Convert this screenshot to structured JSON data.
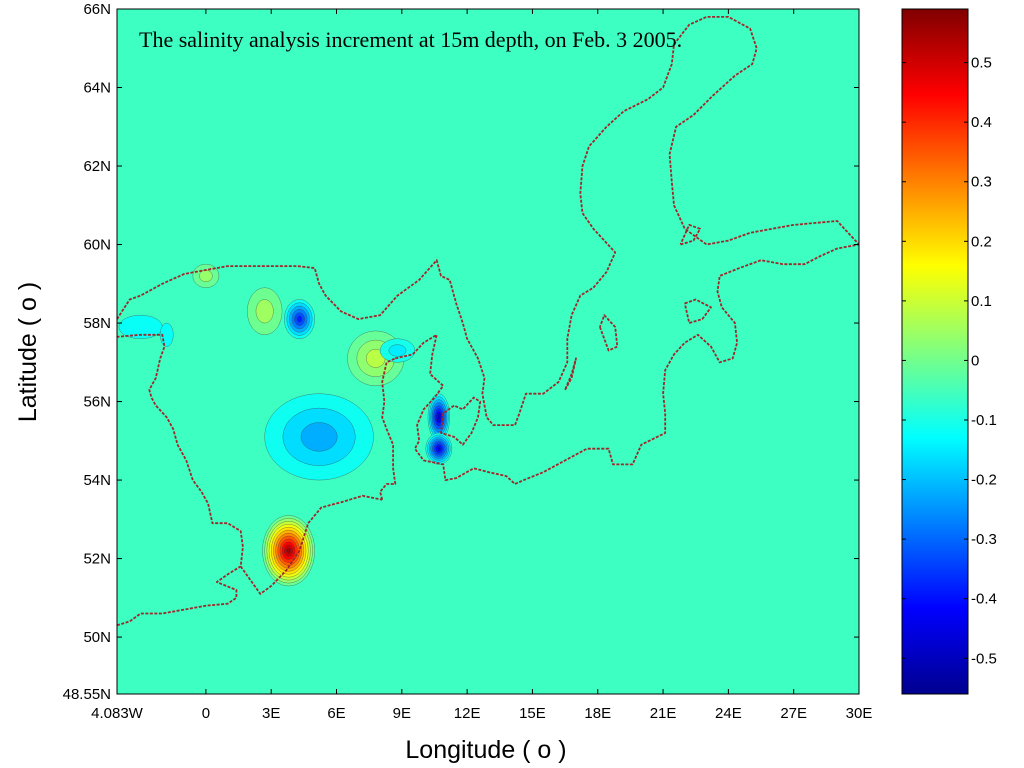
{
  "chart_data": {
    "type": "heatmap",
    "title": "The salinity analysis increment at 15m depth, on Feb. 3 2005.",
    "xlabel": "Longitude ( o )",
    "ylabel": "Latitude ( o )",
    "xlim": [
      -4.083,
      30
    ],
    "ylim": [
      48.55,
      66
    ],
    "x_ticks": [
      {
        "value": -4.083,
        "label": "4.083W"
      },
      {
        "value": 0,
        "label": "0"
      },
      {
        "value": 3,
        "label": "3E"
      },
      {
        "value": 6,
        "label": "6E"
      },
      {
        "value": 9,
        "label": "9E"
      },
      {
        "value": 12,
        "label": "12E"
      },
      {
        "value": 15,
        "label": "15E"
      },
      {
        "value": 18,
        "label": "18E"
      },
      {
        "value": 21,
        "label": "21E"
      },
      {
        "value": 24,
        "label": "24E"
      },
      {
        "value": 27,
        "label": "27E"
      },
      {
        "value": 30,
        "label": "30E"
      }
    ],
    "y_ticks": [
      {
        "value": 48.55,
        "label": "48.55N"
      },
      {
        "value": 50,
        "label": "50N"
      },
      {
        "value": 52,
        "label": "52N"
      },
      {
        "value": 54,
        "label": "54N"
      },
      {
        "value": 56,
        "label": "56N"
      },
      {
        "value": 58,
        "label": "58N"
      },
      {
        "value": 60,
        "label": "60N"
      },
      {
        "value": 62,
        "label": "62N"
      },
      {
        "value": 64,
        "label": "64N"
      },
      {
        "value": 66,
        "label": "66N"
      }
    ],
    "colorbar": {
      "range": [
        -0.56,
        0.59
      ],
      "colormap": "jet",
      "ticks": [
        {
          "value": 0.5,
          "label": "0.5"
        },
        {
          "value": 0.4,
          "label": "0.4"
        },
        {
          "value": 0.3,
          "label": "0.3"
        },
        {
          "value": 0.2,
          "label": "0.2"
        },
        {
          "value": 0.1,
          "label": "0.1"
        },
        {
          "value": 0,
          "label": "0"
        },
        {
          "value": -0.1,
          "label": "-0.1"
        },
        {
          "value": -0.2,
          "label": "-0.2"
        },
        {
          "value": -0.3,
          "label": "-0.3"
        },
        {
          "value": -0.4,
          "label": "-0.4"
        },
        {
          "value": -0.5,
          "label": "-0.5"
        }
      ]
    },
    "background_value": -0.06,
    "contour_interval": 0.05,
    "features": [
      {
        "lon": 3.8,
        "lat": 52.2,
        "value": 0.55,
        "rx": 1.2,
        "ry": 0.9
      },
      {
        "lon": 5.2,
        "lat": 55.1,
        "value": -0.22,
        "rx": 2.5,
        "ry": 1.1
      },
      {
        "lon": 7.8,
        "lat": 57.1,
        "value": 0.08,
        "rx": 1.3,
        "ry": 0.7
      },
      {
        "lon": 2.7,
        "lat": 58.3,
        "value": 0.05,
        "rx": 0.8,
        "ry": 0.6
      },
      {
        "lon": 4.3,
        "lat": 58.1,
        "value": -0.38,
        "rx": 0.7,
        "ry": 0.5
      },
      {
        "lon": 10.7,
        "lat": 55.6,
        "value": -0.48,
        "rx": 0.5,
        "ry": 0.6
      },
      {
        "lon": 10.7,
        "lat": 54.8,
        "value": -0.45,
        "rx": 0.6,
        "ry": 0.4
      },
      {
        "lon": 8.8,
        "lat": 57.3,
        "value": -0.15,
        "rx": 0.8,
        "ry": 0.3
      },
      {
        "lon": -3.0,
        "lat": 57.9,
        "value": -0.12,
        "rx": 1.0,
        "ry": 0.3
      },
      {
        "lon": -1.8,
        "lat": 57.7,
        "value": -0.12,
        "rx": 0.3,
        "ry": 0.3
      },
      {
        "lon": 0.0,
        "lat": 59.2,
        "value": 0.04,
        "rx": 0.6,
        "ry": 0.3
      }
    ],
    "coastline": [
      [
        [
          -4.083,
          50.3
        ],
        [
          -3.5,
          50.4
        ],
        [
          -3,
          50.6
        ],
        [
          -2,
          50.6
        ],
        [
          -1,
          50.7
        ],
        [
          0,
          50.8
        ],
        [
          1,
          50.85
        ],
        [
          1.4,
          51.0
        ],
        [
          1.4,
          51.2
        ],
        [
          0.5,
          51.4
        ],
        [
          1.0,
          51.6
        ],
        [
          1.6,
          51.8
        ],
        [
          1.7,
          52.3
        ],
        [
          1.6,
          52.7
        ],
        [
          1.0,
          52.9
        ],
        [
          0.3,
          52.9
        ],
        [
          0.1,
          53.4
        ],
        [
          -0.2,
          53.7
        ],
        [
          -0.6,
          54.0
        ],
        [
          -0.9,
          54.5
        ],
        [
          -1.3,
          54.9
        ],
        [
          -1.5,
          55.3
        ],
        [
          -1.8,
          55.6
        ],
        [
          -2.3,
          55.9
        ],
        [
          -2.5,
          56.1
        ],
        [
          -2.6,
          56.3
        ],
        [
          -2.3,
          56.6
        ],
        [
          -2.1,
          57.1
        ],
        [
          -1.9,
          57.4
        ],
        [
          -2.0,
          57.7
        ],
        [
          -3.0,
          57.7
        ],
        [
          -4.083,
          57.65
        ]
      ],
      [
        [
          -4.083,
          58.1
        ],
        [
          -3.5,
          58.6
        ],
        [
          -3.0,
          58.7
        ],
        [
          -2.0,
          59.0
        ],
        [
          -1.0,
          59.25
        ],
        [
          0.0,
          59.35
        ],
        [
          1.0,
          59.45
        ],
        [
          2.0,
          59.45
        ],
        [
          3.0,
          59.45
        ],
        [
          4.2,
          59.45
        ],
        [
          5.0,
          59.4
        ],
        [
          5.2,
          59.0
        ],
        [
          5.5,
          58.7
        ],
        [
          6.2,
          58.3
        ],
        [
          7.0,
          58.1
        ],
        [
          8.0,
          58.2
        ],
        [
          8.8,
          58.7
        ],
        [
          9.8,
          59.1
        ],
        [
          10.6,
          59.6
        ],
        [
          10.8,
          59.2
        ],
        [
          11.2,
          59.1
        ],
        [
          11.5,
          58.5
        ],
        [
          11.8,
          58.0
        ],
        [
          12.0,
          57.6
        ],
        [
          12.5,
          57.1
        ],
        [
          12.8,
          56.6
        ],
        [
          12.7,
          56.2
        ],
        [
          12.9,
          55.6
        ],
        [
          13.2,
          55.4
        ],
        [
          14.2,
          55.4
        ],
        [
          14.4,
          55.7
        ],
        [
          14.7,
          56.2
        ],
        [
          15.5,
          56.2
        ],
        [
          16.2,
          56.5
        ],
        [
          16.6,
          57.0
        ],
        [
          16.6,
          57.6
        ],
        [
          16.8,
          58.2
        ],
        [
          17.2,
          58.7
        ],
        [
          17.8,
          58.9
        ],
        [
          18.4,
          59.3
        ],
        [
          18.8,
          59.8
        ],
        [
          17.8,
          60.4
        ],
        [
          17.3,
          60.8
        ],
        [
          17.2,
          61.3
        ],
        [
          17.3,
          62.0
        ],
        [
          17.6,
          62.5
        ],
        [
          18.4,
          63.0
        ],
        [
          19.2,
          63.4
        ],
        [
          20.3,
          63.7
        ],
        [
          21.0,
          64.0
        ],
        [
          21.4,
          64.6
        ],
        [
          21.5,
          65.1
        ],
        [
          22.2,
          65.6
        ],
        [
          23.0,
          65.8
        ],
        [
          24.0,
          65.8
        ],
        [
          25.0,
          65.5
        ],
        [
          25.3,
          65.0
        ],
        [
          25.1,
          64.6
        ],
        [
          24.3,
          64.3
        ],
        [
          23.3,
          63.8
        ],
        [
          22.4,
          63.3
        ],
        [
          21.6,
          63.0
        ],
        [
          21.3,
          62.3
        ],
        [
          21.4,
          61.6
        ],
        [
          21.5,
          61.0
        ],
        [
          22.0,
          60.4
        ],
        [
          23.0,
          60.0
        ],
        [
          24.0,
          60.1
        ],
        [
          25.0,
          60.3
        ],
        [
          26.0,
          60.4
        ],
        [
          27.0,
          60.5
        ],
        [
          28.0,
          60.55
        ],
        [
          29.0,
          60.6
        ],
        [
          30.0,
          60.0
        ]
      ],
      [
        [
          8.7,
          57.1
        ],
        [
          9.5,
          57.2
        ],
        [
          10.0,
          57.5
        ],
        [
          10.6,
          57.7
        ],
        [
          10.4,
          57.2
        ],
        [
          10.3,
          56.7
        ],
        [
          10.9,
          56.4
        ],
        [
          10.5,
          56.1
        ],
        [
          10.0,
          55.8
        ],
        [
          9.7,
          55.4
        ],
        [
          9.8,
          55.0
        ],
        [
          9.6,
          54.8
        ],
        [
          10.0,
          54.5
        ],
        [
          10.9,
          54.4
        ],
        [
          11.0,
          54.0
        ],
        [
          11.5,
          54.05
        ],
        [
          12.3,
          54.3
        ],
        [
          13.0,
          54.2
        ],
        [
          13.8,
          54.1
        ],
        [
          14.2,
          53.9
        ],
        [
          14.6,
          54.0
        ],
        [
          15.5,
          54.2
        ],
        [
          16.5,
          54.5
        ],
        [
          17.5,
          54.8
        ],
        [
          18.5,
          54.8
        ],
        [
          18.7,
          54.4
        ],
        [
          19.6,
          54.4
        ],
        [
          20.0,
          54.9
        ],
        [
          21.1,
          55.2
        ],
        [
          21.1,
          55.7
        ],
        [
          21.0,
          56.2
        ],
        [
          21.1,
          56.8
        ],
        [
          21.5,
          57.2
        ],
        [
          22.0,
          57.5
        ],
        [
          22.6,
          57.7
        ],
        [
          23.2,
          57.4
        ],
        [
          23.6,
          57.0
        ],
        [
          24.2,
          57.1
        ],
        [
          24.4,
          57.5
        ],
        [
          24.3,
          58.0
        ],
        [
          23.7,
          58.4
        ],
        [
          23.5,
          58.8
        ],
        [
          23.6,
          59.2
        ],
        [
          24.5,
          59.4
        ],
        [
          25.5,
          59.6
        ],
        [
          26.5,
          59.5
        ],
        [
          27.5,
          59.5
        ],
        [
          28.2,
          59.7
        ],
        [
          29.0,
          59.9
        ],
        [
          30.0,
          60.0
        ]
      ],
      [
        [
          8.1,
          53.5
        ],
        [
          8.0,
          53.7
        ],
        [
          8.3,
          53.9
        ],
        [
          8.7,
          53.9
        ],
        [
          8.6,
          54.3
        ],
        [
          8.6,
          54.9
        ],
        [
          8.3,
          55.3
        ],
        [
          8.1,
          55.6
        ],
        [
          8.2,
          56.0
        ],
        [
          8.1,
          56.5
        ],
        [
          8.3,
          57.0
        ],
        [
          8.7,
          57.1
        ]
      ],
      [
        [
          1.6,
          51.8
        ],
        [
          2.5,
          51.1
        ],
        [
          3.0,
          51.3
        ],
        [
          3.7,
          51.7
        ],
        [
          4.3,
          52.2
        ],
        [
          4.7,
          52.9
        ],
        [
          5.3,
          53.3
        ],
        [
          6.3,
          53.45
        ],
        [
          7.2,
          53.6
        ],
        [
          8.1,
          53.5
        ]
      ],
      [
        [
          10.9,
          55.7
        ],
        [
          10.8,
          55.2
        ],
        [
          11.4,
          55.1
        ],
        [
          11.8,
          54.9
        ],
        [
          12.2,
          55.2
        ],
        [
          12.5,
          55.6
        ],
        [
          12.6,
          56.0
        ],
        [
          12.3,
          56.1
        ],
        [
          11.8,
          55.8
        ],
        [
          11.4,
          55.9
        ],
        [
          10.9,
          55.7
        ]
      ],
      [
        [
          18.1,
          57.9
        ],
        [
          18.5,
          57.3
        ],
        [
          18.9,
          57.4
        ],
        [
          18.8,
          57.9
        ],
        [
          18.3,
          58.2
        ],
        [
          18.1,
          57.9
        ]
      ],
      [
        [
          16.5,
          56.3
        ],
        [
          16.8,
          56.6
        ],
        [
          17.0,
          57.1
        ],
        [
          16.8,
          56.7
        ],
        [
          16.5,
          56.3
        ]
      ],
      [
        [
          22.0,
          58.5
        ],
        [
          22.5,
          58.6
        ],
        [
          23.2,
          58.4
        ],
        [
          22.8,
          58.1
        ],
        [
          22.2,
          58.0
        ],
        [
          22.0,
          58.5
        ]
      ],
      [
        [
          21.8,
          60.0
        ],
        [
          22.4,
          60.1
        ],
        [
          22.7,
          60.4
        ],
        [
          22.2,
          60.5
        ],
        [
          21.8,
          60.0
        ]
      ]
    ]
  }
}
